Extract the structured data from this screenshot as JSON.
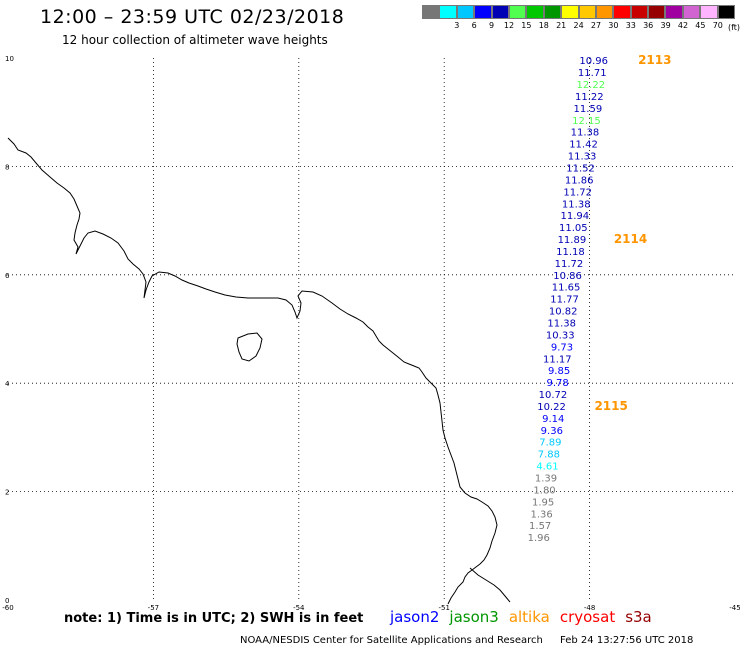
{
  "header": {
    "title": "12:00 – 23:59 UTC 02/23/2018",
    "subtitle": "12 hour collection of altimeter wave heights"
  },
  "legend": {
    "unit": "(ft)",
    "entries": [
      {
        "label": "",
        "color": "#777777"
      },
      {
        "label": "3",
        "color": "#00ffff"
      },
      {
        "label": "6",
        "color": "#00c8ff"
      },
      {
        "label": "9",
        "color": "#0000ff"
      },
      {
        "label": "12",
        "color": "#0000b4"
      },
      {
        "label": "15",
        "color": "#50ff50"
      },
      {
        "label": "18",
        "color": "#00c800"
      },
      {
        "label": "21",
        "color": "#009600"
      },
      {
        "label": "24",
        "color": "#ffff00"
      },
      {
        "label": "27",
        "color": "#ffc800"
      },
      {
        "label": "30",
        "color": "#ff9600"
      },
      {
        "label": "33",
        "color": "#ff0000"
      },
      {
        "label": "36",
        "color": "#c80000"
      },
      {
        "label": "39",
        "color": "#960000"
      },
      {
        "label": "42",
        "color": "#a000a0"
      },
      {
        "label": "45",
        "color": "#d264d2"
      },
      {
        "label": "70",
        "color": "#ffb4ff"
      },
      {
        "label": "",
        "color": "#000000"
      }
    ]
  },
  "axes": {
    "x_ticks": [
      "-60",
      "-57",
      "-54",
      "-51",
      "-48",
      "-45"
    ],
    "y_ticks": [
      "0",
      "2",
      "4",
      "6",
      "8",
      "10"
    ],
    "x_range": [
      -60,
      -45
    ],
    "y_range": [
      0,
      10
    ]
  },
  "observations": [
    {
      "value": "10.96",
      "lon": -47.62,
      "lat": 9.96,
      "color": "#0000b4"
    },
    {
      "value": "11.71",
      "lon": -47.65,
      "lat": 9.74,
      "color": "#0000b4"
    },
    {
      "value": "12.22",
      "lon": -47.68,
      "lat": 9.52,
      "color": "#50ff50"
    },
    {
      "value": "11.22",
      "lon": -47.71,
      "lat": 9.3,
      "color": "#0000b4"
    },
    {
      "value": "11.59",
      "lon": -47.74,
      "lat": 9.08,
      "color": "#0000b4"
    },
    {
      "value": "12.15",
      "lon": -47.77,
      "lat": 8.86,
      "color": "#50ff50"
    },
    {
      "value": "11.38",
      "lon": -47.8,
      "lat": 8.64,
      "color": "#0000b4"
    },
    {
      "value": "11.42",
      "lon": -47.83,
      "lat": 8.42,
      "color": "#0000b4"
    },
    {
      "value": "11.33",
      "lon": -47.86,
      "lat": 8.2,
      "color": "#0000b4"
    },
    {
      "value": "11.52",
      "lon": -47.89,
      "lat": 7.98,
      "color": "#0000b4"
    },
    {
      "value": "11.86",
      "lon": -47.92,
      "lat": 7.76,
      "color": "#0000b4"
    },
    {
      "value": "11.72",
      "lon": -47.95,
      "lat": 7.54,
      "color": "#0000b4"
    },
    {
      "value": "11.38",
      "lon": -47.98,
      "lat": 7.32,
      "color": "#0000b4"
    },
    {
      "value": "11.94",
      "lon": -48.01,
      "lat": 7.1,
      "color": "#0000b4"
    },
    {
      "value": "11.05",
      "lon": -48.04,
      "lat": 6.88,
      "color": "#0000b4"
    },
    {
      "value": "11.89",
      "lon": -48.07,
      "lat": 6.66,
      "color": "#0000b4"
    },
    {
      "value": "11.18",
      "lon": -48.1,
      "lat": 6.44,
      "color": "#0000b4"
    },
    {
      "value": "11.72",
      "lon": -48.13,
      "lat": 6.22,
      "color": "#0000b4"
    },
    {
      "value": "10.86",
      "lon": -48.16,
      "lat": 6.0,
      "color": "#0000b4"
    },
    {
      "value": "11.65",
      "lon": -48.19,
      "lat": 5.78,
      "color": "#0000b4"
    },
    {
      "value": "11.77",
      "lon": -48.22,
      "lat": 5.56,
      "color": "#0000b4"
    },
    {
      "value": "10.82",
      "lon": -48.25,
      "lat": 5.34,
      "color": "#0000b4"
    },
    {
      "value": "11.38",
      "lon": -48.28,
      "lat": 5.12,
      "color": "#0000b4"
    },
    {
      "value": "10.33",
      "lon": -48.31,
      "lat": 4.9,
      "color": "#0000b4"
    },
    {
      "value": "9.73",
      "lon": -48.34,
      "lat": 4.68,
      "color": "#0000ff"
    },
    {
      "value": "11.17",
      "lon": -48.37,
      "lat": 4.46,
      "color": "#0000b4"
    },
    {
      "value": "9.85",
      "lon": -48.4,
      "lat": 4.24,
      "color": "#0000ff"
    },
    {
      "value": "9.78",
      "lon": -48.43,
      "lat": 4.02,
      "color": "#0000ff"
    },
    {
      "value": "10.72",
      "lon": -48.46,
      "lat": 3.8,
      "color": "#0000b4"
    },
    {
      "value": "10.22",
      "lon": -48.49,
      "lat": 3.58,
      "color": "#0000b4"
    },
    {
      "value": "9.14",
      "lon": -48.52,
      "lat": 3.36,
      "color": "#0000ff"
    },
    {
      "value": "9.36",
      "lon": -48.55,
      "lat": 3.14,
      "color": "#0000ff"
    },
    {
      "value": "7.89",
      "lon": -48.58,
      "lat": 2.92,
      "color": "#00c8ff"
    },
    {
      "value": "7.88",
      "lon": -48.61,
      "lat": 2.7,
      "color": "#00c8ff"
    },
    {
      "value": "4.61",
      "lon": -48.64,
      "lat": 2.48,
      "color": "#00ffff"
    },
    {
      "value": "1.39",
      "lon": -48.67,
      "lat": 2.26,
      "color": "#777777"
    },
    {
      "value": "1.80",
      "lon": -48.7,
      "lat": 2.04,
      "color": "#777777"
    },
    {
      "value": "1.95",
      "lon": -48.73,
      "lat": 1.82,
      "color": "#777777"
    },
    {
      "value": "1.36",
      "lon": -48.76,
      "lat": 1.6,
      "color": "#777777"
    },
    {
      "value": "1.57",
      "lon": -48.79,
      "lat": 1.38,
      "color": "#777777"
    },
    {
      "value": "1.96",
      "lon": -48.82,
      "lat": 1.16,
      "color": "#777777"
    }
  ],
  "pass_times": [
    {
      "label": "2113",
      "lon": -47.0,
      "lat": 9.96
    },
    {
      "label": "2114",
      "lon": -47.5,
      "lat": 6.66
    },
    {
      "label": "2115",
      "lon": -47.9,
      "lat": 3.58
    }
  ],
  "footer": {
    "note": "note:  1) Time is in UTC;  2) SWH is in feet",
    "satellites": [
      {
        "name": "jason2",
        "color": "#0000ff"
      },
      {
        "name": "jason3",
        "color": "#009600"
      },
      {
        "name": "altika",
        "color": "#ff9600"
      },
      {
        "name": "cryosat",
        "color": "#ff0000"
      },
      {
        "name": "s3a",
        "color": "#960000"
      }
    ],
    "credit": "NOAA/NESDIS Center for Satellite Applications and Research",
    "stamp": "Feb 24 13:27:56 UTC 2018"
  }
}
